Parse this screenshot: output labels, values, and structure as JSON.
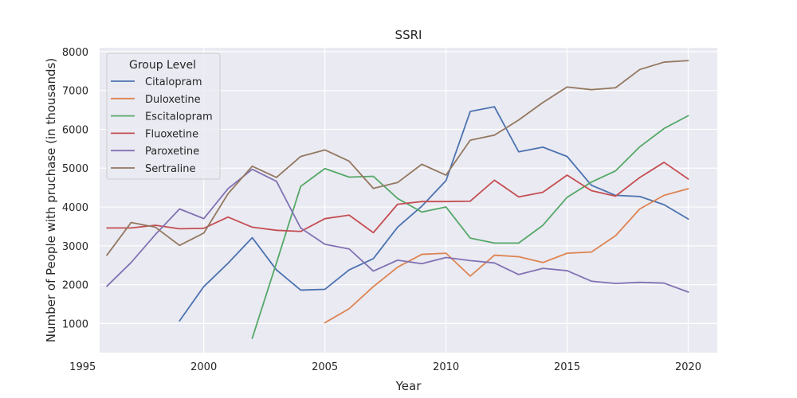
{
  "chart_data": {
    "type": "line",
    "title": "SSRI",
    "xlabel": "Year",
    "ylabel": "Number of People with pruchase (in thousands)",
    "xlim": [
      1995.7,
      2021.2
    ],
    "ylim": [
      250,
      8100
    ],
    "xticks": [
      1995,
      2000,
      2005,
      2010,
      2015,
      2020
    ],
    "yticks": [
      1000,
      2000,
      3000,
      4000,
      5000,
      6000,
      7000,
      8000
    ],
    "grid": true,
    "legend_title": "Group Level",
    "legend_position": "upper-left",
    "series": [
      {
        "name": "Citalopram",
        "color": "#4c72b0",
        "x": [
          1999,
          2000,
          2001,
          2002,
          2003,
          2004,
          2005,
          2006,
          2007,
          2008,
          2009,
          2010,
          2011,
          2012,
          2013,
          2014,
          2015,
          2016,
          2017,
          2018,
          2019,
          2020
        ],
        "y": [
          1070,
          1950,
          2550,
          3210,
          2380,
          1860,
          1880,
          2380,
          2670,
          3480,
          4020,
          4680,
          6460,
          6580,
          5420,
          5540,
          5300,
          4560,
          4300,
          4270,
          4060,
          3690
        ]
      },
      {
        "name": "Duloxetine",
        "color": "#dd8452",
        "x": [
          2005,
          2006,
          2007,
          2008,
          2009,
          2010,
          2011,
          2012,
          2013,
          2014,
          2015,
          2016,
          2017,
          2018,
          2019,
          2020
        ],
        "y": [
          1020,
          1380,
          1950,
          2450,
          2780,
          2810,
          2220,
          2760,
          2720,
          2570,
          2810,
          2840,
          3260,
          3950,
          4300,
          4470
        ]
      },
      {
        "name": "Escitalopram",
        "color": "#55a868",
        "x": [
          2002,
          2003,
          2004,
          2005,
          2006,
          2007,
          2008,
          2009,
          2010,
          2011,
          2012,
          2013,
          2014,
          2015,
          2016,
          2017,
          2018,
          2019,
          2020
        ],
        "y": [
          620,
          2560,
          4530,
          4990,
          4770,
          4790,
          4220,
          3870,
          4000,
          3200,
          3070,
          3070,
          3530,
          4250,
          4640,
          4930,
          5550,
          6020,
          6350
        ]
      },
      {
        "name": "Fluoxetine",
        "color": "#c44e52",
        "x": [
          1996,
          1997,
          1998,
          1999,
          2000,
          2001,
          2002,
          2003,
          2004,
          2005,
          2006,
          2007,
          2008,
          2009,
          2010,
          2011,
          2012,
          2013,
          2014,
          2015,
          2016,
          2017,
          2018,
          2019,
          2020
        ],
        "y": [
          3460,
          3460,
          3530,
          3440,
          3450,
          3740,
          3480,
          3400,
          3370,
          3700,
          3790,
          3340,
          4070,
          4140,
          4140,
          4150,
          4690,
          4260,
          4380,
          4820,
          4420,
          4280,
          4760,
          5150,
          4720
        ]
      },
      {
        "name": "Paroxetine",
        "color": "#8172b3",
        "x": [
          1996,
          1997,
          1998,
          1999,
          2000,
          2001,
          2002,
          2003,
          2004,
          2005,
          2006,
          2007,
          2008,
          2009,
          2010,
          2011,
          2012,
          2013,
          2014,
          2015,
          2016,
          2017,
          2018,
          2019,
          2020
        ],
        "y": [
          1960,
          2570,
          3290,
          3950,
          3700,
          4470,
          4970,
          4660,
          3460,
          3040,
          2920,
          2350,
          2630,
          2540,
          2700,
          2620,
          2560,
          2260,
          2420,
          2360,
          2090,
          2030,
          2060,
          2040,
          1810
        ]
      },
      {
        "name": "Sertraline",
        "color": "#937860",
        "x": [
          1996,
          1997,
          1998,
          1999,
          2000,
          2001,
          2002,
          2003,
          2004,
          2005,
          2006,
          2007,
          2008,
          2009,
          2010,
          2011,
          2012,
          2013,
          2014,
          2015,
          2016,
          2017,
          2018,
          2019,
          2020
        ],
        "y": [
          2760,
          3600,
          3480,
          3010,
          3330,
          4340,
          5050,
          4760,
          5300,
          5470,
          5180,
          4480,
          4630,
          5100,
          4820,
          5720,
          5850,
          6240,
          6690,
          7090,
          7020,
          7070,
          7540,
          7730,
          7770
        ]
      }
    ]
  }
}
